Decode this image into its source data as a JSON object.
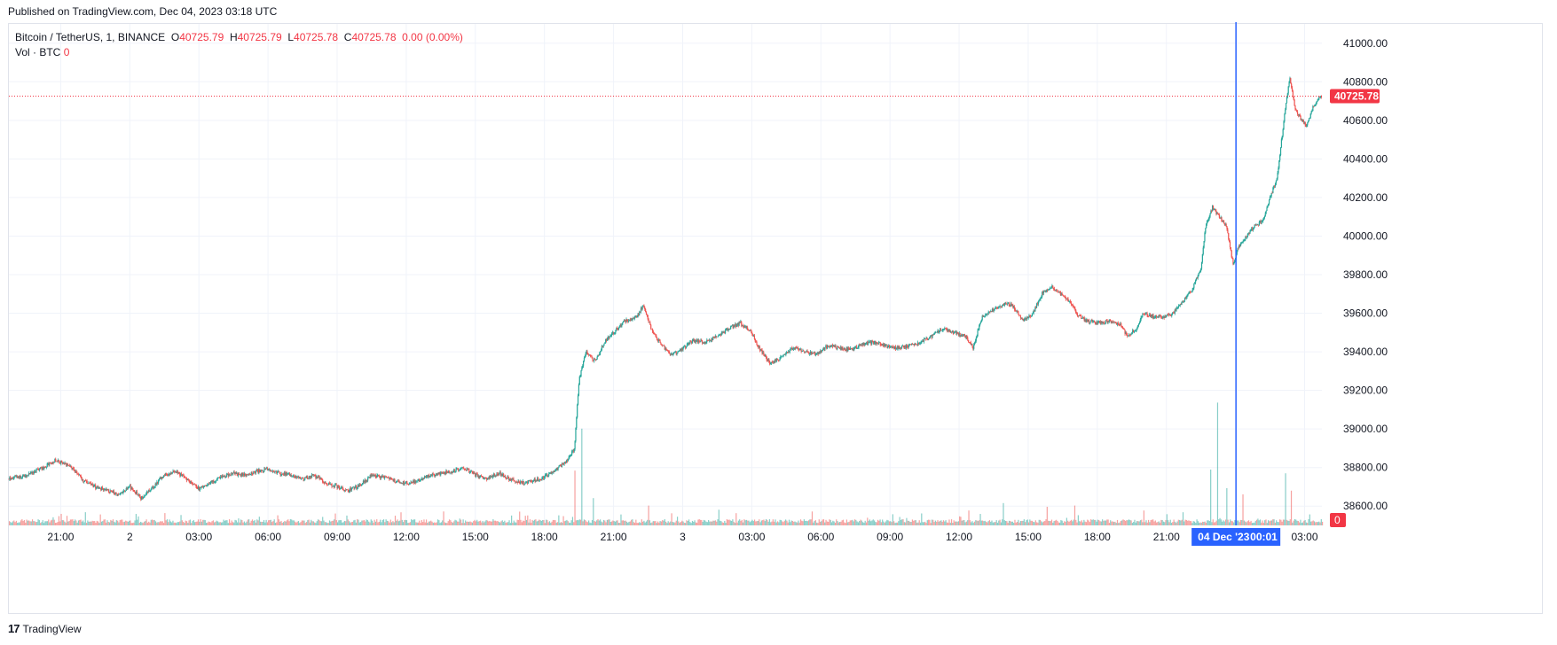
{
  "header": {
    "published": "Published on TradingView.com, Dec 04, 2023 03:18 UTC"
  },
  "legend": {
    "symbol": "Bitcoin / TetherUS, 1, BINANCE",
    "o_label": "O",
    "o_value": "40725.79",
    "h_label": "H",
    "h_value": "40725.79",
    "l_label": "L",
    "l_value": "40725.78",
    "c_label": "C",
    "c_value": "40725.78",
    "change": "0.00 (0.00%)",
    "vol_label": "Vol · BTC",
    "vol_value": "0"
  },
  "footer": {
    "brand": "TradingView",
    "logo_text": "17"
  },
  "colors": {
    "up": "#26a69a",
    "down": "#ef5350",
    "crosshair": "#2962ff",
    "price_label": "#f23645",
    "grid": "#f0f3fa"
  },
  "chart_data": {
    "type": "candlestick",
    "symbol": "BTCUSDT",
    "interval": "1",
    "exchange": "BINANCE",
    "ylim": [
      38500,
      41100
    ],
    "y_ticks": [
      "41000.00",
      "40800.00",
      "40600.00",
      "40400.00",
      "40200.00",
      "40000.00",
      "39800.00",
      "39600.00",
      "39400.00",
      "39200.00",
      "39000.00",
      "38800.00",
      "38600.00"
    ],
    "y_tick_values": [
      41000,
      40800,
      40600,
      40400,
      40200,
      40000,
      39800,
      39600,
      39400,
      39200,
      39000,
      38800,
      38600
    ],
    "x_ticks": [
      "21:00",
      "2",
      "03:00",
      "06:00",
      "09:00",
      "12:00",
      "15:00",
      "18:00",
      "21:00",
      "3",
      "03:00",
      "06:00",
      "09:00",
      "12:00",
      "15:00",
      "18:00",
      "21:00",
      "00:01",
      "03:00"
    ],
    "x_tick_hours": [
      21,
      24,
      27,
      30,
      33,
      36,
      39,
      42,
      45,
      48,
      51,
      54,
      57,
      60,
      63,
      66,
      69,
      72.02,
      75
    ],
    "x_range_hours": [
      18.75,
      75.75
    ],
    "last_price": "40725.78",
    "last_price_value": 40725.78,
    "volume_label": "0",
    "crosshair_hour": 72.02,
    "crosshair_date": "04 Dec '23",
    "crosshair_time": "00:01",
    "price_path": [
      [
        18.75,
        38740
      ],
      [
        19.5,
        38760
      ],
      [
        20.25,
        38800
      ],
      [
        20.8,
        38840
      ],
      [
        21.5,
        38800
      ],
      [
        22,
        38730
      ],
      [
        22.5,
        38700
      ],
      [
        23,
        38680
      ],
      [
        23.5,
        38660
      ],
      [
        24,
        38700
      ],
      [
        24.5,
        38640
      ],
      [
        25,
        38700
      ],
      [
        25.5,
        38760
      ],
      [
        26,
        38780
      ],
      [
        26.5,
        38740
      ],
      [
        27,
        38690
      ],
      [
        27.5,
        38720
      ],
      [
        28,
        38750
      ],
      [
        28.5,
        38770
      ],
      [
        29,
        38760
      ],
      [
        29.5,
        38780
      ],
      [
        30,
        38790
      ],
      [
        30.5,
        38770
      ],
      [
        31,
        38760
      ],
      [
        31.5,
        38740
      ],
      [
        32,
        38760
      ],
      [
        32.5,
        38720
      ],
      [
        33,
        38700
      ],
      [
        33.5,
        38680
      ],
      [
        34,
        38710
      ],
      [
        34.5,
        38760
      ],
      [
        35,
        38750
      ],
      [
        35.5,
        38730
      ],
      [
        36,
        38720
      ],
      [
        36.5,
        38730
      ],
      [
        37,
        38760
      ],
      [
        37.5,
        38770
      ],
      [
        38,
        38780
      ],
      [
        38.5,
        38800
      ],
      [
        39,
        38760
      ],
      [
        39.5,
        38740
      ],
      [
        40,
        38770
      ],
      [
        40.5,
        38740
      ],
      [
        41,
        38720
      ],
      [
        41.5,
        38730
      ],
      [
        42,
        38750
      ],
      [
        42.5,
        38790
      ],
      [
        43,
        38840
      ],
      [
        43.3,
        38900
      ],
      [
        43.5,
        39250
      ],
      [
        43.8,
        39400
      ],
      [
        44.2,
        39350
      ],
      [
        44.6,
        39450
      ],
      [
        45,
        39500
      ],
      [
        45.5,
        39560
      ],
      [
        46,
        39580
      ],
      [
        46.3,
        39640
      ],
      [
        46.7,
        39500
      ],
      [
        47,
        39450
      ],
      [
        47.5,
        39380
      ],
      [
        48,
        39420
      ],
      [
        48.5,
        39460
      ],
      [
        49,
        39450
      ],
      [
        49.5,
        39480
      ],
      [
        50,
        39520
      ],
      [
        50.5,
        39550
      ],
      [
        51,
        39500
      ],
      [
        51.3,
        39420
      ],
      [
        51.8,
        39340
      ],
      [
        52.3,
        39370
      ],
      [
        52.8,
        39420
      ],
      [
        53.3,
        39400
      ],
      [
        53.8,
        39390
      ],
      [
        54.3,
        39430
      ],
      [
        54.8,
        39420
      ],
      [
        55.3,
        39410
      ],
      [
        55.8,
        39440
      ],
      [
        56.3,
        39450
      ],
      [
        56.8,
        39430
      ],
      [
        57.3,
        39420
      ],
      [
        57.8,
        39430
      ],
      [
        58.3,
        39450
      ],
      [
        58.8,
        39480
      ],
      [
        59.3,
        39520
      ],
      [
        59.8,
        39500
      ],
      [
        60.3,
        39480
      ],
      [
        60.6,
        39420
      ],
      [
        61,
        39580
      ],
      [
        61.5,
        39620
      ],
      [
        62,
        39650
      ],
      [
        62.3,
        39640
      ],
      [
        62.8,
        39560
      ],
      [
        63.2,
        39600
      ],
      [
        63.6,
        39700
      ],
      [
        64,
        39740
      ],
      [
        64.4,
        39700
      ],
      [
        64.8,
        39660
      ],
      [
        65.2,
        39580
      ],
      [
        65.6,
        39560
      ],
      [
        66,
        39550
      ],
      [
        66.5,
        39560
      ],
      [
        67,
        39540
      ],
      [
        67.3,
        39480
      ],
      [
        67.7,
        39520
      ],
      [
        68,
        39600
      ],
      [
        68.5,
        39580
      ],
      [
        68.9,
        39580
      ],
      [
        69.3,
        39600
      ],
      [
        69.7,
        39660
      ],
      [
        70.1,
        39720
      ],
      [
        70.5,
        39830
      ],
      [
        70.7,
        40050
      ],
      [
        71,
        40150
      ],
      [
        71.3,
        40100
      ],
      [
        71.6,
        40050
      ],
      [
        71.9,
        39850
      ],
      [
        72.1,
        39940
      ],
      [
        72.5,
        40000
      ],
      [
        72.8,
        40050
      ],
      [
        73.2,
        40080
      ],
      [
        73.5,
        40200
      ],
      [
        73.8,
        40300
      ],
      [
        74,
        40500
      ],
      [
        74.2,
        40700
      ],
      [
        74.35,
        40820
      ],
      [
        74.6,
        40650
      ],
      [
        74.9,
        40600
      ],
      [
        75.1,
        40570
      ],
      [
        75.3,
        40650
      ],
      [
        75.5,
        40700
      ],
      [
        75.7,
        40726
      ]
    ],
    "volume_spikes": [
      [
        43.3,
        0.42
      ],
      [
        43.6,
        0.78
      ],
      [
        44.1,
        0.22
      ],
      [
        46.5,
        0.16
      ],
      [
        60.4,
        0.12
      ],
      [
        61.9,
        0.18
      ],
      [
        63.8,
        0.15
      ],
      [
        65,
        0.16
      ],
      [
        68,
        0.12
      ],
      [
        70.9,
        0.45
      ],
      [
        71.2,
        0.99
      ],
      [
        71.6,
        0.3
      ],
      [
        72.3,
        0.25
      ],
      [
        74.15,
        0.42
      ],
      [
        74.4,
        0.28
      ]
    ]
  }
}
